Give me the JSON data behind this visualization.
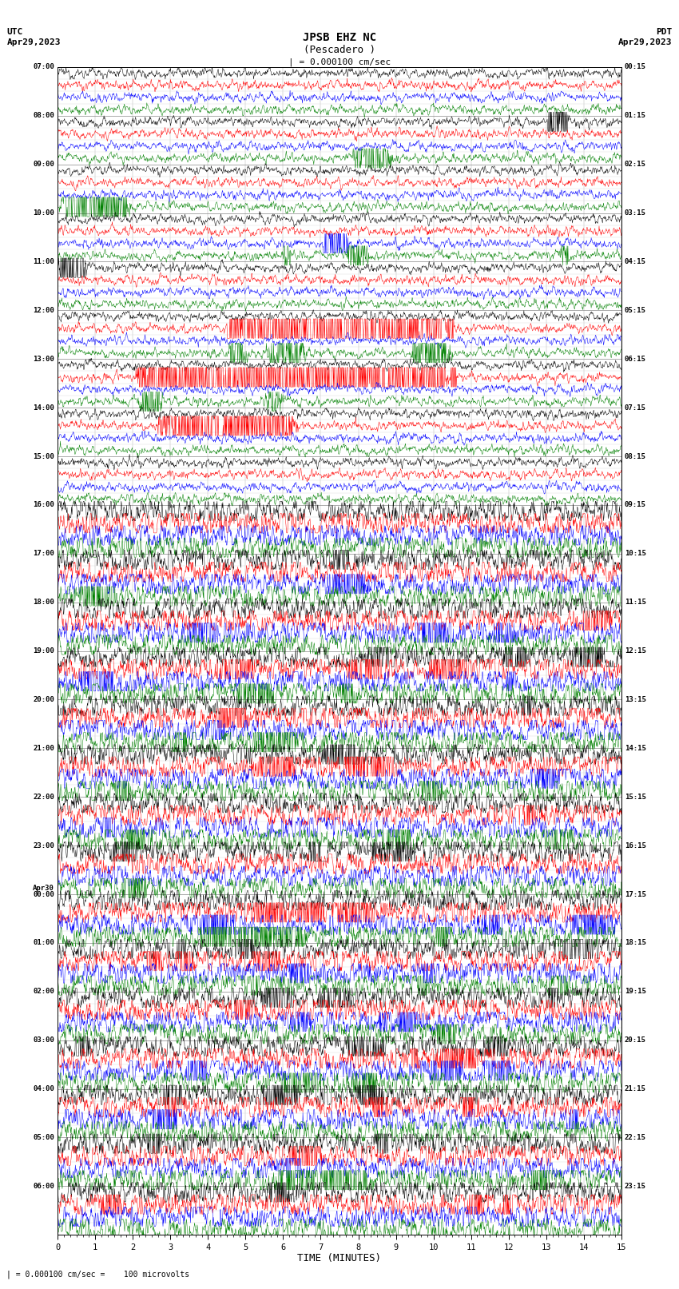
{
  "title_line1": "JPSB EHZ NC",
  "title_line2": "(Pescadero )",
  "scale_label": "= 0.000100 cm/sec",
  "utc_label": "UTC\nApr29,2023",
  "pdt_label": "PDT\nApr29,2023",
  "footer_label": "= 0.000100 cm/sec =    100 microvolts",
  "xlabel": "TIME (MINUTES)",
  "left_times_all": [
    "07:00",
    "",
    "",
    "",
    "08:00",
    "",
    "",
    "",
    "09:00",
    "",
    "",
    "",
    "10:00",
    "",
    "",
    "",
    "11:00",
    "",
    "",
    "",
    "12:00",
    "",
    "",
    "",
    "13:00",
    "",
    "",
    "",
    "14:00",
    "",
    "",
    "",
    "15:00",
    "",
    "",
    "",
    "16:00",
    "",
    "",
    "",
    "17:00",
    "",
    "",
    "",
    "18:00",
    "",
    "",
    "",
    "19:00",
    "",
    "",
    "",
    "20:00",
    "",
    "",
    "",
    "21:00",
    "",
    "",
    "",
    "22:00",
    "",
    "",
    "",
    "23:00",
    "",
    "",
    "",
    "Apr30\n00:00",
    "",
    "",
    "",
    "01:00",
    "",
    "",
    "",
    "02:00",
    "",
    "",
    "",
    "03:00",
    "",
    "",
    "",
    "04:00",
    "",
    "",
    "",
    "05:00",
    "",
    "",
    "",
    "06:00",
    "",
    "",
    ""
  ],
  "right_times_all": [
    "00:15",
    "",
    "",
    "",
    "01:15",
    "",
    "",
    "",
    "02:15",
    "",
    "",
    "",
    "03:15",
    "",
    "",
    "",
    "04:15",
    "",
    "",
    "",
    "05:15",
    "",
    "",
    "",
    "06:15",
    "",
    "",
    "",
    "07:15",
    "",
    "",
    "",
    "08:15",
    "",
    "",
    "",
    "09:15",
    "",
    "",
    "",
    "10:15",
    "",
    "",
    "",
    "11:15",
    "",
    "",
    "",
    "12:15",
    "",
    "",
    "",
    "13:15",
    "",
    "",
    "",
    "14:15",
    "",
    "",
    "",
    "15:15",
    "",
    "",
    "",
    "16:15",
    "",
    "",
    "",
    "17:15",
    "",
    "",
    "",
    "18:15",
    "",
    "",
    "",
    "19:15",
    "",
    "",
    "",
    "20:15",
    "",
    "",
    "",
    "21:15",
    "",
    "",
    "",
    "22:15",
    "",
    "",
    "",
    "23:15",
    "",
    "",
    ""
  ],
  "row_colors": [
    "black",
    "red",
    "blue",
    "green"
  ],
  "bg_color": "white",
  "figsize": [
    8.5,
    16.13
  ]
}
